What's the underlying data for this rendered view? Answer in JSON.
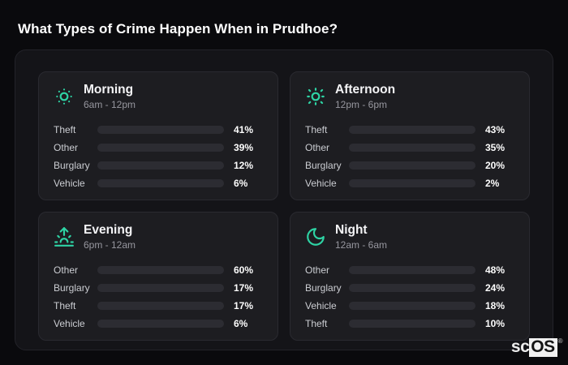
{
  "page": {
    "title": "What Types of Crime Happen When in Prudhoe?",
    "brand": {
      "prefix": "sc",
      "suffix": "OS",
      "registered_mark": "®"
    }
  },
  "colors": {
    "accent_icon": "#2ed3a4",
    "theft": "#a855f7",
    "other": "#64748b",
    "burglary": "#e8791d",
    "vehicle": "#3b82f6",
    "bar_track": "#2c2c32",
    "page_background": "#0a0a0d",
    "panel_background": "#141418",
    "card_background": "#1d1d21"
  },
  "chart_data": {
    "type": "bar",
    "orientation": "horizontal",
    "title": "What Types of Crime Happen When in Prudhoe?",
    "value_format": "percent",
    "xlim": [
      0,
      100
    ],
    "grid": false,
    "legend": false,
    "groups": [
      {
        "name": "Morning",
        "time_range": "6am - 12pm",
        "icon": "sun-dim-icon",
        "bars": [
          {
            "label": "Theft",
            "value": 41,
            "display": "41%",
            "color": "#a855f7"
          },
          {
            "label": "Other",
            "value": 39,
            "display": "39%",
            "color": "#64748b"
          },
          {
            "label": "Burglary",
            "value": 12,
            "display": "12%",
            "color": "#e8791d"
          },
          {
            "label": "Vehicle",
            "value": 6,
            "display": "6%",
            "color": "#3b82f6"
          }
        ]
      },
      {
        "name": "Afternoon",
        "time_range": "12pm - 6pm",
        "icon": "sun-icon",
        "bars": [
          {
            "label": "Theft",
            "value": 43,
            "display": "43%",
            "color": "#a855f7"
          },
          {
            "label": "Other",
            "value": 35,
            "display": "35%",
            "color": "#64748b"
          },
          {
            "label": "Burglary",
            "value": 20,
            "display": "20%",
            "color": "#e8791d"
          },
          {
            "label": "Vehicle",
            "value": 2,
            "display": "2%",
            "color": "#3b82f6"
          }
        ]
      },
      {
        "name": "Evening",
        "time_range": "6pm - 12am",
        "icon": "sunrise-icon",
        "bars": [
          {
            "label": "Other",
            "value": 60,
            "display": "60%",
            "color": "#64748b"
          },
          {
            "label": "Burglary",
            "value": 17,
            "display": "17%",
            "color": "#e8791d"
          },
          {
            "label": "Theft",
            "value": 17,
            "display": "17%",
            "color": "#a855f7"
          },
          {
            "label": "Vehicle",
            "value": 6,
            "display": "6%",
            "color": "#3b82f6"
          }
        ]
      },
      {
        "name": "Night",
        "time_range": "12am - 6am",
        "icon": "moon-icon",
        "bars": [
          {
            "label": "Other",
            "value": 48,
            "display": "48%",
            "color": "#64748b"
          },
          {
            "label": "Burglary",
            "value": 24,
            "display": "24%",
            "color": "#e8791d"
          },
          {
            "label": "Vehicle",
            "value": 18,
            "display": "18%",
            "color": "#3b82f6"
          },
          {
            "label": "Theft",
            "value": 10,
            "display": "10%",
            "color": "#a855f7"
          }
        ]
      }
    ]
  }
}
